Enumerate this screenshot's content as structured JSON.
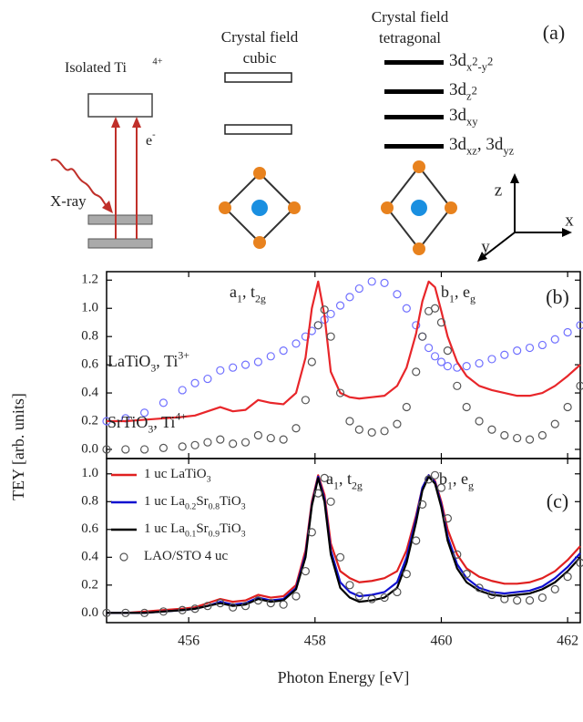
{
  "diagram": {
    "panel_label": "(a)",
    "isolated": [
      {
        "text": "Isolated Ti"
      },
      {
        "text": "4+",
        "style": "sup"
      }
    ],
    "cubic": [
      "Crystal field",
      "cubic"
    ],
    "tetragonal": [
      "Crystal field",
      "tetragonal"
    ],
    "levels": [
      [
        {
          "text": "3d"
        },
        {
          "text": "x",
          "style": "sub"
        },
        {
          "text": "2",
          "style": "subsup"
        },
        {
          "text": "-y",
          "style": "sub"
        },
        {
          "text": "2",
          "style": "subsup"
        }
      ],
      [
        {
          "text": "3d"
        },
        {
          "text": "z",
          "style": "sub"
        },
        {
          "text": "2",
          "style": "subsup"
        }
      ],
      [
        {
          "text": "3d"
        },
        {
          "text": "xy",
          "style": "sub"
        }
      ],
      [
        {
          "text": "3d"
        },
        {
          "text": "xz",
          "style": "sub"
        },
        {
          "text": ", 3d"
        },
        {
          "text": "yz",
          "style": "sub"
        }
      ]
    ],
    "xray": "X-ray",
    "electron": [
      {
        "text": "e"
      },
      {
        "text": "-",
        "style": "sup"
      }
    ],
    "axes": [
      "z",
      "x",
      "y"
    ]
  },
  "chart_data": [
    {
      "type": "line",
      "panel_label": "(b)",
      "annotations": [
        [
          {
            "text": "a"
          },
          {
            "text": "1",
            "style": "sub"
          },
          {
            "text": ", t"
          },
          {
            "text": "2g",
            "style": "sub"
          }
        ],
        [
          {
            "text": "b"
          },
          {
            "text": "1",
            "style": "sub"
          },
          {
            "text": ", e"
          },
          {
            "text": "g",
            "style": "sub"
          }
        ],
        [
          {
            "text": "LaTiO"
          },
          {
            "text": "3",
            "style": "sub"
          },
          {
            "text": ", Ti"
          },
          {
            "text": "3+",
            "style": "sup"
          }
        ],
        [
          {
            "text": "SrTiO"
          },
          {
            "text": "3",
            "style": "sub"
          },
          {
            "text": ", Ti"
          },
          {
            "text": "4+",
            "style": "sup"
          }
        ]
      ],
      "x": [
        454.7,
        455.0,
        455.3,
        455.6,
        455.9,
        456.1,
        456.3,
        456.5,
        456.7,
        456.9,
        457.1,
        457.3,
        457.5,
        457.7,
        457.85,
        457.95,
        458.05,
        458.15,
        458.25,
        458.4,
        458.55,
        458.7,
        458.9,
        459.1,
        459.3,
        459.45,
        459.6,
        459.7,
        459.8,
        459.9,
        460.0,
        460.1,
        460.25,
        460.4,
        460.6,
        460.8,
        461.0,
        461.2,
        461.4,
        461.6,
        461.8,
        462.0,
        462.2
      ],
      "series": [
        {
          "style": "circles",
          "color": "#7070ff",
          "values": [
            0.2,
            0.22,
            0.26,
            0.33,
            0.42,
            0.47,
            0.5,
            0.56,
            0.58,
            0.6,
            0.62,
            0.66,
            0.7,
            0.75,
            0.8,
            0.84,
            0.88,
            0.92,
            0.96,
            1.02,
            1.08,
            1.14,
            1.19,
            1.18,
            1.1,
            1.0,
            0.88,
            0.8,
            0.72,
            0.66,
            0.62,
            0.59,
            0.58,
            0.59,
            0.61,
            0.64,
            0.67,
            0.7,
            0.72,
            0.74,
            0.78,
            0.83,
            0.88
          ]
        },
        {
          "style": "line",
          "color": "#e8262a",
          "values": [
            0.2,
            0.2,
            0.21,
            0.22,
            0.23,
            0.24,
            0.27,
            0.3,
            0.27,
            0.28,
            0.35,
            0.33,
            0.32,
            0.4,
            0.65,
            1.0,
            1.19,
            0.95,
            0.55,
            0.4,
            0.37,
            0.36,
            0.37,
            0.38,
            0.45,
            0.58,
            0.82,
            1.05,
            1.19,
            1.15,
            0.98,
            0.8,
            0.62,
            0.52,
            0.45,
            0.42,
            0.4,
            0.38,
            0.38,
            0.4,
            0.45,
            0.52,
            0.6
          ]
        },
        {
          "style": "circles",
          "color": "#555555",
          "values": [
            0.0,
            0.0,
            0.0,
            0.01,
            0.02,
            0.03,
            0.05,
            0.07,
            0.04,
            0.05,
            0.1,
            0.08,
            0.07,
            0.15,
            0.35,
            0.62,
            0.88,
            0.99,
            0.8,
            0.4,
            0.2,
            0.14,
            0.12,
            0.13,
            0.18,
            0.3,
            0.55,
            0.8,
            0.98,
            1.0,
            0.9,
            0.7,
            0.45,
            0.3,
            0.2,
            0.14,
            0.1,
            0.08,
            0.07,
            0.1,
            0.18,
            0.3,
            0.45
          ]
        }
      ],
      "xlim": [
        454.7,
        462.2
      ],
      "ylim": [
        -0.065,
        1.26
      ],
      "xticks": [
        456,
        458,
        460,
        462
      ],
      "show_xtick_labels": false,
      "yticks": [
        {
          "value": 0,
          "label": "0.0"
        },
        0.2,
        0.4,
        0.6,
        0.8,
        {
          "value": 1,
          "label": "1.0"
        },
        1.2
      ]
    },
    {
      "type": "line",
      "panel_label": "(c)",
      "annotations": [
        [
          {
            "text": "a"
          },
          {
            "text": "1",
            "style": "sub"
          },
          {
            "text": ", t"
          },
          {
            "text": "2g",
            "style": "sub"
          }
        ],
        [
          {
            "text": "b"
          },
          {
            "text": "1",
            "style": "sub"
          },
          {
            "text": ", e"
          },
          {
            "text": "g",
            "style": "sub"
          }
        ]
      ],
      "xlabel": "Photon Energy [eV]",
      "ylabel": "TEY [arb. units]",
      "legend": "upper left",
      "x": [
        454.7,
        455.0,
        455.3,
        455.6,
        455.9,
        456.1,
        456.3,
        456.5,
        456.7,
        456.9,
        457.1,
        457.3,
        457.5,
        457.7,
        457.85,
        457.95,
        458.05,
        458.15,
        458.25,
        458.4,
        458.55,
        458.7,
        458.9,
        459.1,
        459.3,
        459.45,
        459.6,
        459.7,
        459.8,
        459.9,
        460.0,
        460.1,
        460.25,
        460.4,
        460.6,
        460.8,
        461.0,
        461.2,
        461.4,
        461.6,
        461.8,
        462.0,
        462.2
      ],
      "series": [
        {
          "name": [
            {
              "text": "1 uc LaTiO"
            },
            {
              "text": "3",
              "style": "sub"
            }
          ],
          "style": "line",
          "color": "#e02020",
          "values": [
            0.0,
            0.0,
            0.01,
            0.02,
            0.03,
            0.04,
            0.07,
            0.1,
            0.08,
            0.09,
            0.13,
            0.11,
            0.12,
            0.2,
            0.45,
            0.8,
            0.99,
            0.85,
            0.5,
            0.3,
            0.25,
            0.22,
            0.23,
            0.25,
            0.3,
            0.45,
            0.7,
            0.9,
            0.99,
            0.95,
            0.8,
            0.6,
            0.42,
            0.32,
            0.26,
            0.23,
            0.21,
            0.21,
            0.22,
            0.25,
            0.3,
            0.38,
            0.48
          ]
        },
        {
          "name": [
            {
              "text": "1 uc La"
            },
            {
              "text": "0.2",
              "style": "sub"
            },
            {
              "text": "Sr"
            },
            {
              "text": "0.8",
              "style": "sub"
            },
            {
              "text": "TiO"
            },
            {
              "text": "3",
              "style": "sub"
            }
          ],
          "style": "line",
          "color": "#1010d0",
          "values": [
            0.0,
            0.0,
            0.0,
            0.01,
            0.02,
            0.03,
            0.05,
            0.08,
            0.06,
            0.07,
            0.11,
            0.09,
            0.1,
            0.18,
            0.42,
            0.78,
            0.98,
            0.82,
            0.45,
            0.22,
            0.15,
            0.12,
            0.13,
            0.15,
            0.22,
            0.4,
            0.68,
            0.9,
            0.99,
            0.94,
            0.78,
            0.55,
            0.35,
            0.25,
            0.18,
            0.15,
            0.14,
            0.15,
            0.16,
            0.19,
            0.25,
            0.33,
            0.43
          ]
        },
        {
          "name": [
            {
              "text": "1 uc La"
            },
            {
              "text": "0.1",
              "style": "sub"
            },
            {
              "text": "Sr"
            },
            {
              "text": "0.9",
              "style": "sub"
            },
            {
              "text": "TiO"
            },
            {
              "text": "3",
              "style": "sub"
            }
          ],
          "style": "line",
          "color": "#000000",
          "values": [
            0.0,
            0.0,
            0.0,
            0.01,
            0.02,
            0.03,
            0.05,
            0.07,
            0.05,
            0.06,
            0.1,
            0.08,
            0.09,
            0.17,
            0.4,
            0.77,
            0.97,
            0.8,
            0.42,
            0.18,
            0.11,
            0.08,
            0.09,
            0.11,
            0.18,
            0.36,
            0.65,
            0.88,
            0.98,
            0.93,
            0.76,
            0.52,
            0.32,
            0.22,
            0.16,
            0.13,
            0.12,
            0.13,
            0.14,
            0.17,
            0.22,
            0.3,
            0.4
          ]
        },
        {
          "name": [
            {
              "text": "LAO/STO 4 uc"
            }
          ],
          "style": "circles",
          "color": "#555555",
          "values": [
            0.0,
            0.0,
            0.0,
            0.01,
            0.02,
            0.03,
            0.05,
            0.07,
            0.04,
            0.05,
            0.09,
            0.07,
            0.06,
            0.12,
            0.3,
            0.58,
            0.86,
            0.97,
            0.8,
            0.4,
            0.2,
            0.12,
            0.1,
            0.11,
            0.15,
            0.28,
            0.52,
            0.78,
            0.96,
            0.99,
            0.9,
            0.68,
            0.42,
            0.28,
            0.18,
            0.13,
            0.1,
            0.09,
            0.09,
            0.11,
            0.17,
            0.26,
            0.36
          ]
        }
      ],
      "xlim": [
        454.7,
        462.2
      ],
      "ylim": [
        -0.07,
        1.11
      ],
      "xticks": [
        456,
        458,
        460,
        462
      ],
      "show_xtick_labels": true,
      "yticks": [
        {
          "value": 0,
          "label": "0.0"
        },
        0.2,
        0.4,
        0.6,
        0.8,
        {
          "value": 1,
          "label": "1.0"
        }
      ]
    }
  ]
}
